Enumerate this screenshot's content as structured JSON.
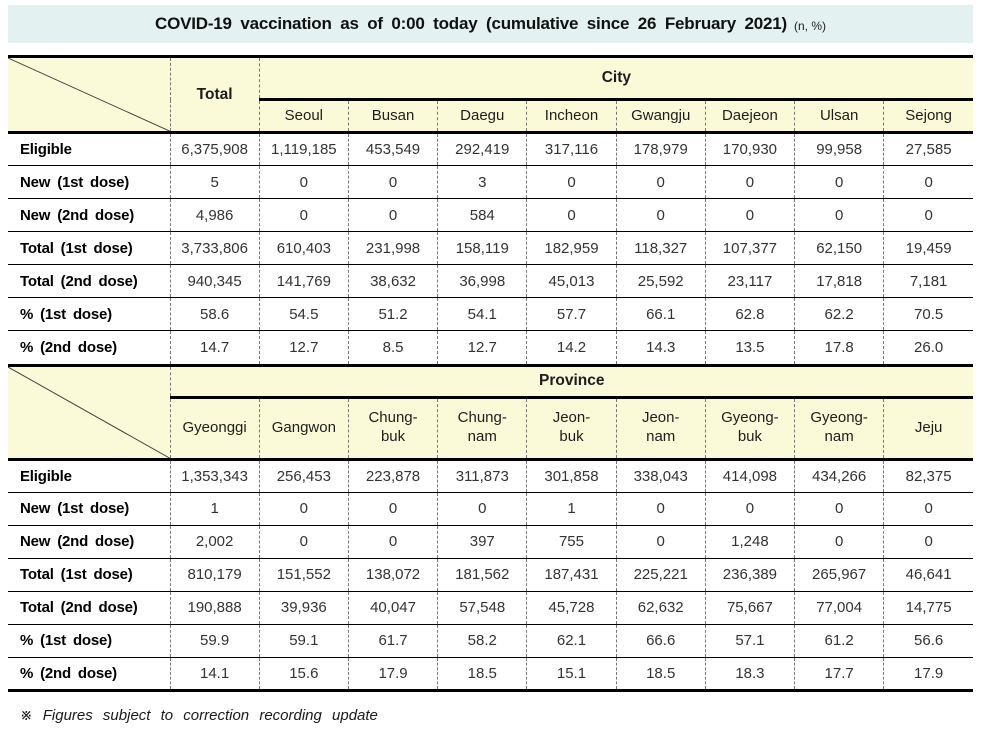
{
  "title": {
    "main": "COVID-19 vaccination as of 0:00 today (cumulative since 26 February 2021)",
    "suffix": "(n, %)"
  },
  "city_table": {
    "corner_label": "",
    "total_header": "Total",
    "group_header": "City",
    "columns": [
      "Seoul",
      "Busan",
      "Daegu",
      "Incheon",
      "Gwangju",
      "Daejeon",
      "Ulsan",
      "Sejong"
    ],
    "rows": [
      {
        "label": "Eligible",
        "values": [
          "6,375,908",
          "1,119,185",
          "453,549",
          "292,419",
          "317,116",
          "178,979",
          "170,930",
          "99,958",
          "27,585"
        ]
      },
      {
        "label": "New (1st dose)",
        "values": [
          "5",
          "0",
          "0",
          "3",
          "0",
          "0",
          "0",
          "0",
          "0"
        ]
      },
      {
        "label": "New (2nd dose)",
        "values": [
          "4,986",
          "0",
          "0",
          "584",
          "0",
          "0",
          "0",
          "0",
          "0"
        ]
      },
      {
        "label": "Total (1st dose)",
        "values": [
          "3,733,806",
          "610,403",
          "231,998",
          "158,119",
          "182,959",
          "118,327",
          "107,377",
          "62,150",
          "19,459"
        ]
      },
      {
        "label": "Total (2nd dose)",
        "values": [
          "940,345",
          "141,769",
          "38,632",
          "36,998",
          "45,013",
          "25,592",
          "23,117",
          "17,818",
          "7,181"
        ]
      },
      {
        "label": "% (1st dose)",
        "values": [
          "58.6",
          "54.5",
          "51.2",
          "54.1",
          "57.7",
          "66.1",
          "62.8",
          "62.2",
          "70.5"
        ]
      },
      {
        "label": "% (2nd dose)",
        "values": [
          "14.7",
          "12.7",
          "8.5",
          "12.7",
          "14.2",
          "14.3",
          "13.5",
          "17.8",
          "26.0"
        ]
      }
    ]
  },
  "province_table": {
    "corner_label": "",
    "group_header": "Province",
    "columns": [
      "Gyeonggi",
      "Gangwon",
      "Chung-\nbuk",
      "Chung-\nnam",
      "Jeon-\nbuk",
      "Jeon-\nnam",
      "Gyeong-\nbuk",
      "Gyeong-\nnam",
      "Jeju"
    ],
    "rows": [
      {
        "label": "Eligible",
        "values": [
          "1,353,343",
          "256,453",
          "223,878",
          "311,873",
          "301,858",
          "338,043",
          "414,098",
          "434,266",
          "82,375"
        ]
      },
      {
        "label": "New (1st dose)",
        "values": [
          "1",
          "0",
          "0",
          "0",
          "1",
          "0",
          "0",
          "0",
          "0"
        ]
      },
      {
        "label": "New (2nd dose)",
        "values": [
          "2,002",
          "0",
          "0",
          "397",
          "755",
          "0",
          "1,248",
          "0",
          "0"
        ]
      },
      {
        "label": "Total (1st dose)",
        "values": [
          "810,179",
          "151,552",
          "138,072",
          "181,562",
          "187,431",
          "225,221",
          "236,389",
          "265,967",
          "46,641"
        ]
      },
      {
        "label": "Total (2nd dose)",
        "values": [
          "190,888",
          "39,936",
          "40,047",
          "57,548",
          "45,728",
          "62,632",
          "75,667",
          "77,004",
          "14,775"
        ]
      },
      {
        "label": "% (1st dose)",
        "values": [
          "59.9",
          "59.1",
          "61.7",
          "58.2",
          "62.1",
          "66.6",
          "57.1",
          "61.2",
          "56.6"
        ]
      },
      {
        "label": "% (2nd dose)",
        "values": [
          "14.1",
          "15.6",
          "17.9",
          "18.5",
          "15.1",
          "18.5",
          "18.3",
          "17.7",
          "17.9"
        ]
      }
    ]
  },
  "footnote": "※ Figures subject to correction recording update",
  "colors": {
    "title_bg": "#e3f2f1",
    "header_bg": "#fafad9",
    "border": "#000000"
  }
}
